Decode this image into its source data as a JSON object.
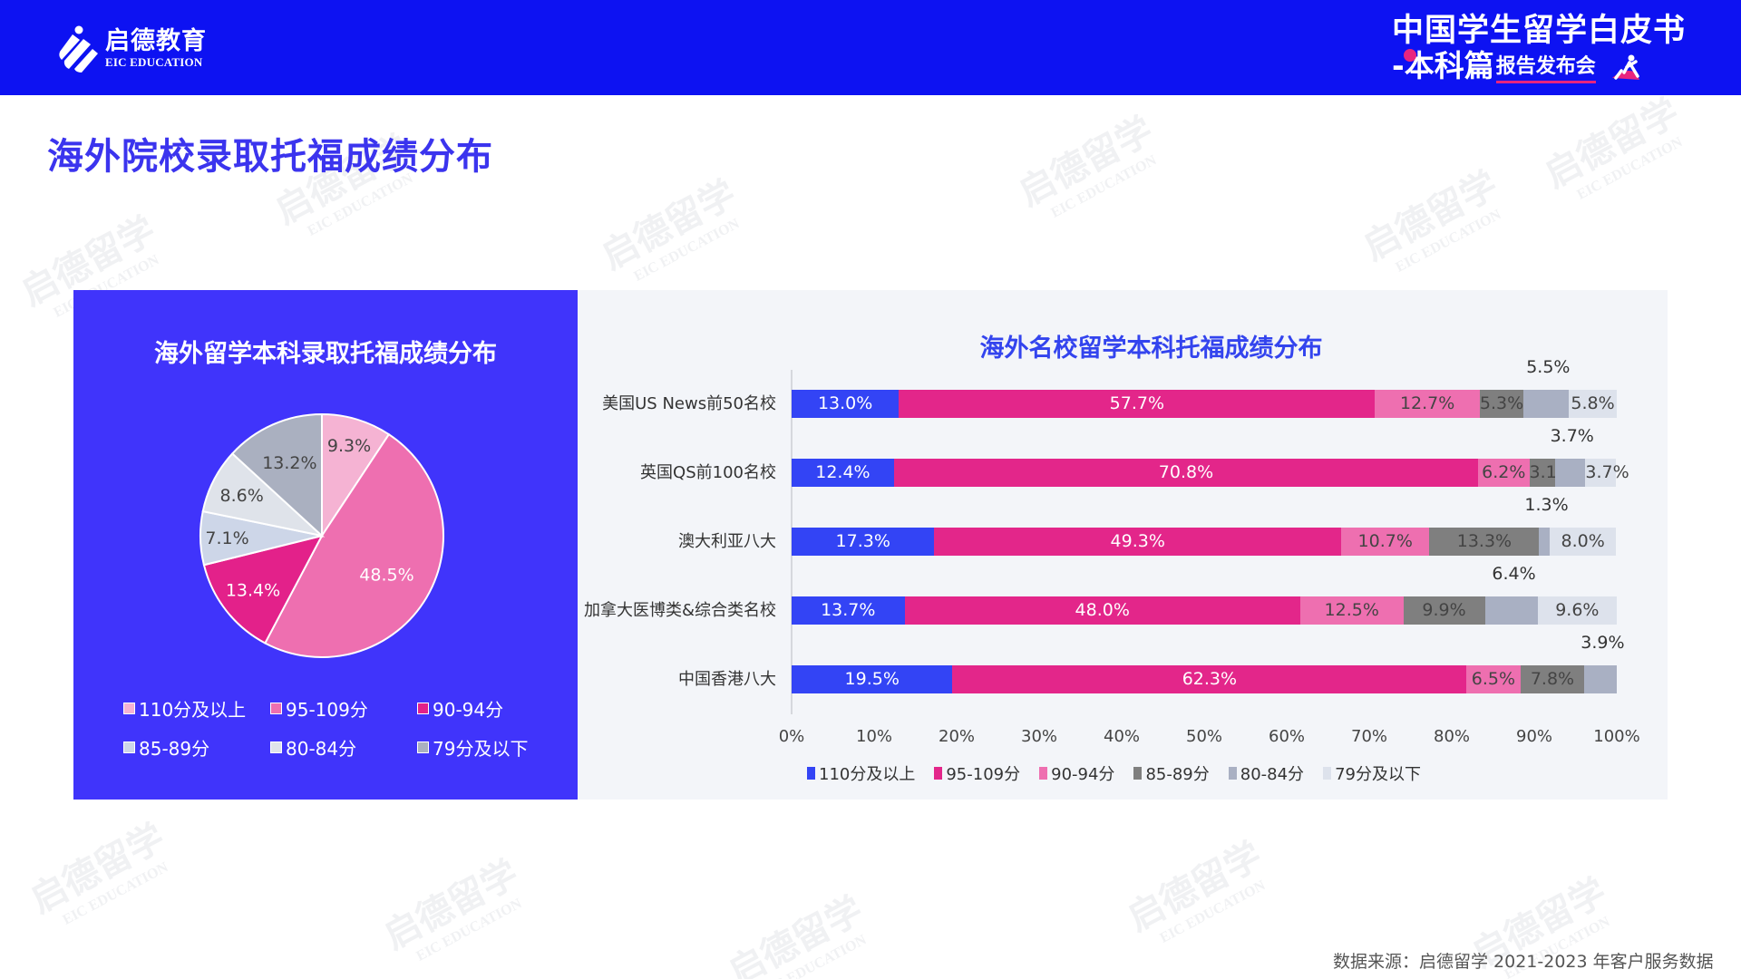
{
  "header": {
    "logo_cn": "启德教育",
    "logo_en": "EIC EDUCATION",
    "event_line1": "中国学生留学白皮书",
    "event_line2_main": "-本科篇",
    "event_line2_small": "报告发布会"
  },
  "page_title": "海外院校录取托福成绩分布",
  "watermark": {
    "cn": "启德留学",
    "en": "EIC EDUCATION"
  },
  "colors": {
    "header_bg": "#0d12f2",
    "left_panel_bg": "#4034fb",
    "right_panel_bg": "#f3f5f9",
    "title_blue": "#3b34ee"
  },
  "pie_panel": {
    "title": "海外留学本科录取托福成绩分布",
    "legend": [
      {
        "label": "110分及以上",
        "color": "#f5b3d3"
      },
      {
        "label": "95-109分",
        "color": "#ee6fb0"
      },
      {
        "label": "90-94分",
        "color": "#e3218a"
      },
      {
        "label": "85-89分",
        "color": "#cdd6e8"
      },
      {
        "label": "80-84分",
        "color": "#dfe3ea"
      },
      {
        "label": "79分及以下",
        "color": "#aab0c0"
      }
    ]
  },
  "bar_panel": {
    "title": "海外名校留学本科托福成绩分布",
    "legend": [
      {
        "label": "110分及以上",
        "color": "#3344f5"
      },
      {
        "label": "95-109分",
        "color": "#e3268a"
      },
      {
        "label": "90-94分",
        "color": "#ee6fb0"
      },
      {
        "label": "85-89分",
        "color": "#7f7f7f"
      },
      {
        "label": "80-84分",
        "color": "#a9b0c3"
      },
      {
        "label": "79分及以下",
        "color": "#dde2ec"
      }
    ],
    "x_ticks": [
      "0%",
      "10%",
      "20%",
      "30%",
      "40%",
      "50%",
      "60%",
      "70%",
      "80%",
      "90%",
      "100%"
    ]
  },
  "footer": {
    "source": "数据来源：启德留学 2021-2023 年客户服务数据"
  },
  "chart_data": [
    {
      "type": "pie",
      "title": "海外留学本科录取托福成绩分布",
      "categories": [
        "110分及以上",
        "95-109分",
        "90-94分",
        "85-89分",
        "80-84分",
        "79分及以下"
      ],
      "values": [
        9.3,
        48.5,
        13.4,
        7.1,
        8.6,
        13.2
      ],
      "labels": [
        "9.3%",
        "48.5%",
        "13.4%",
        "7.1%",
        "8.6%",
        "13.2%"
      ],
      "legend_position": "bottom"
    },
    {
      "type": "bar",
      "orientation": "horizontal",
      "stacked": true,
      "title": "海外名校留学本科托福成绩分布",
      "categories": [
        "美国US News前50名校",
        "英国QS前100名校",
        "澳大利亚八大",
        "加拿大医博类&综合类名校",
        "中国香港八大"
      ],
      "series": [
        {
          "name": "110分及以上",
          "values": [
            13.0,
            12.4,
            17.3,
            13.7,
            19.5
          ]
        },
        {
          "name": "95-109分",
          "values": [
            57.7,
            70.8,
            49.3,
            48.0,
            62.3
          ]
        },
        {
          "name": "90-94分",
          "values": [
            12.7,
            6.2,
            10.7,
            12.5,
            6.5
          ]
        },
        {
          "name": "85-89分",
          "values": [
            5.3,
            3.1,
            13.3,
            9.9,
            7.8
          ]
        },
        {
          "name": "80-84分",
          "values": [
            5.5,
            3.7,
            1.3,
            6.4,
            3.9
          ]
        },
        {
          "name": "79分及以下",
          "values": [
            5.8,
            3.7,
            8.0,
            9.6,
            0
          ]
        }
      ],
      "xlabel": "",
      "ylabel": "",
      "xlim": [
        0,
        100
      ],
      "x_tick_labels": [
        "0%",
        "10%",
        "20%",
        "30%",
        "40%",
        "50%",
        "60%",
        "70%",
        "80%",
        "90%",
        "100%"
      ],
      "grid": false,
      "legend_position": "bottom"
    }
  ]
}
